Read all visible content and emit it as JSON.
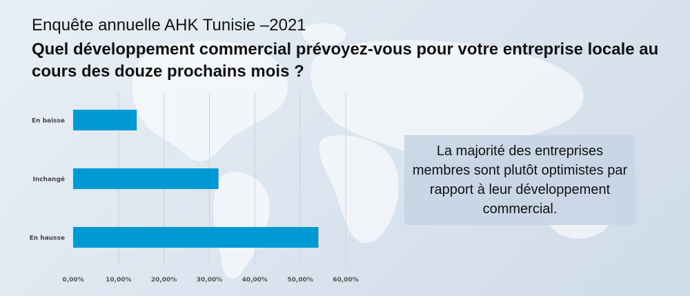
{
  "header": {
    "subtitle": "Enquête annuelle AHK Tunisie –2021",
    "title": "Quel développement commercial prévoyez-vous pour votre entreprise locale au cours des douze prochains mois ?"
  },
  "note": {
    "text": "La majorité des entreprises membres sont plutôt optimistes par rapport à leur développement commercial."
  },
  "colors": {
    "bar": "#0099d4",
    "grid": "#c8d2dc",
    "axis_text": "#555555",
    "category_text": "#444444"
  },
  "chart_data": {
    "type": "bar",
    "orientation": "horizontal",
    "categories": [
      "En baisse",
      "Inchangé",
      "En hausse"
    ],
    "values": [
      0.14,
      0.32,
      0.54
    ],
    "xlim": [
      0,
      0.6
    ],
    "x_ticks": [
      0,
      0.1,
      0.2,
      0.3,
      0.4,
      0.5,
      0.6
    ],
    "x_tick_labels": [
      "0,00%",
      "10,00%",
      "20,00%",
      "30,00%",
      "40,00%",
      "50,00%",
      "60,00%"
    ],
    "grid": true,
    "legend": "none"
  }
}
